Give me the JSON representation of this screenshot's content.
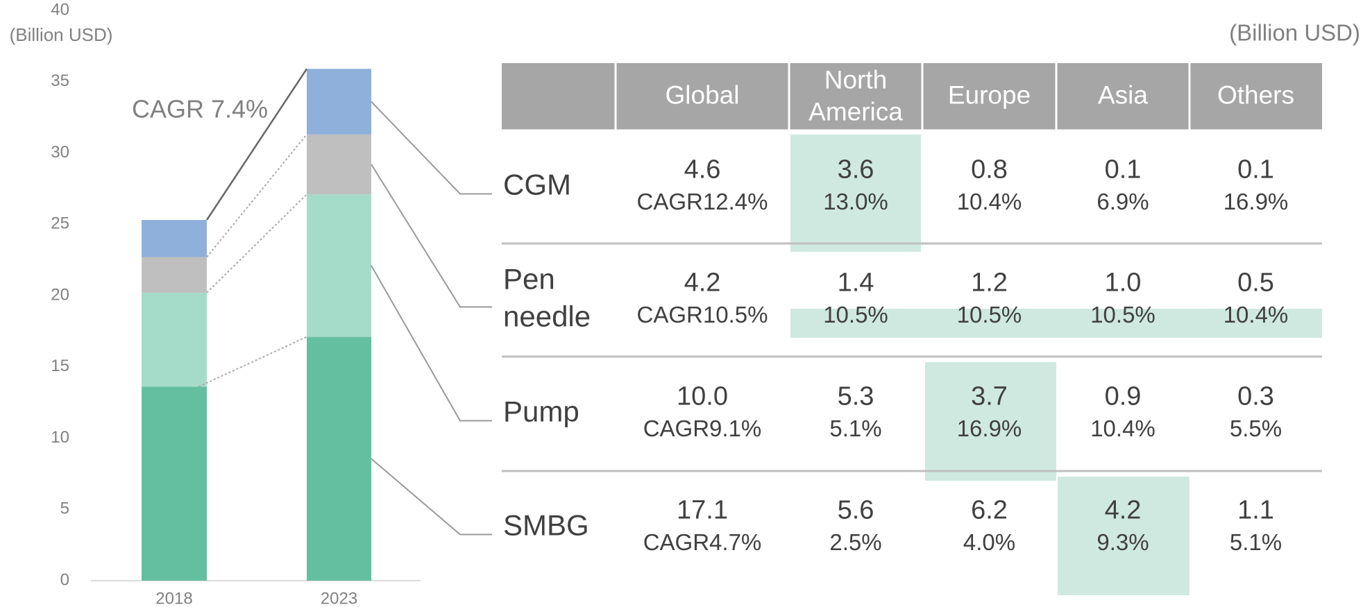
{
  "chart_data": {
    "type": "stacked_bar",
    "y_label": "(Billion USD)",
    "annotation": "CAGR 7.4%",
    "categories": [
      "2018",
      "2023"
    ],
    "series": [
      {
        "name": "CGM",
        "color": "#8eb0da",
        "values": [
          2.6,
          4.6
        ]
      },
      {
        "name": "Pen needle",
        "color": "#bfbfbf",
        "values": [
          2.5,
          4.2
        ]
      },
      {
        "name": "Pump",
        "color": "#a5dbc9",
        "values": [
          6.6,
          10.0
        ]
      },
      {
        "name": "SMBG",
        "color": "#64bfa0",
        "values": [
          13.6,
          17.1
        ]
      }
    ],
    "ylim": [
      0,
      40
    ],
    "yticks": [
      0,
      5,
      10,
      15,
      20,
      25,
      30,
      35,
      40
    ]
  },
  "table": {
    "unit": "(Billion USD)",
    "columns": [
      "Global",
      "North America",
      "Europe",
      "Asia",
      "Others"
    ],
    "rows": [
      [
        [
          "4.6",
          "CAGR12.4%"
        ],
        [
          "3.6",
          "13.0%"
        ],
        [
          "0.8",
          "10.4%"
        ],
        [
          "0.1",
          "6.9%"
        ],
        [
          "0.1",
          "16.9%"
        ]
      ],
      [
        [
          "4.2",
          "CAGR10.5%"
        ],
        [
          "1.4",
          "10.5%"
        ],
        [
          "1.2",
          "10.5%"
        ],
        [
          "1.0",
          "10.5%"
        ],
        [
          "0.5",
          "10.4%"
        ]
      ],
      [
        [
          "10.0",
          "CAGR9.1%"
        ],
        [
          "5.3",
          "5.1%"
        ],
        [
          "3.7",
          "16.9%"
        ],
        [
          "0.9",
          "10.4%"
        ],
        [
          "0.3",
          "5.5%"
        ]
      ],
      [
        [
          "17.1",
          "CAGR4.7%"
        ],
        [
          "5.6",
          "2.5%"
        ],
        [
          "6.2",
          "4.0%"
        ],
        [
          "4.2",
          "9.3%"
        ],
        [
          "1.1",
          "5.1%"
        ]
      ]
    ]
  }
}
